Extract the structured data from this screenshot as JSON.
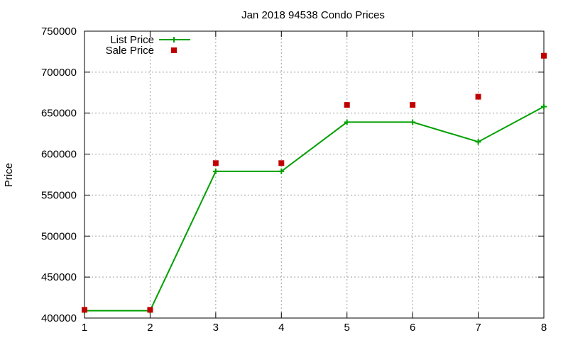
{
  "chart_data": {
    "type": "line",
    "title": "Jan 2018 94538 Condo Prices",
    "xlabel": "",
    "ylabel": "Price",
    "xlim": [
      1,
      8
    ],
    "ylim": [
      400000,
      750000
    ],
    "x_ticks": [
      "1",
      "2",
      "3",
      "4",
      "5",
      "6",
      "7",
      "8"
    ],
    "y_ticks": [
      "400000",
      "450000",
      "500000",
      "550000",
      "600000",
      "650000",
      "700000",
      "750000"
    ],
    "grid": true,
    "legend_position": "top-left",
    "series": [
      {
        "name": "List Price",
        "style": "line-with-plus-markers",
        "color": "#00a000",
        "x": [
          1,
          2,
          3,
          4,
          5,
          6,
          7,
          8
        ],
        "y": [
          409000,
          409000,
          579000,
          579000,
          639000,
          639000,
          615000,
          658000
        ]
      },
      {
        "name": "Sale Price",
        "style": "square-markers",
        "color": "#c00000",
        "x": [
          1,
          2,
          3,
          4,
          5,
          6,
          7,
          8
        ],
        "y": [
          410000,
          410000,
          589000,
          589000,
          660000,
          660000,
          670000,
          720000
        ]
      }
    ]
  }
}
